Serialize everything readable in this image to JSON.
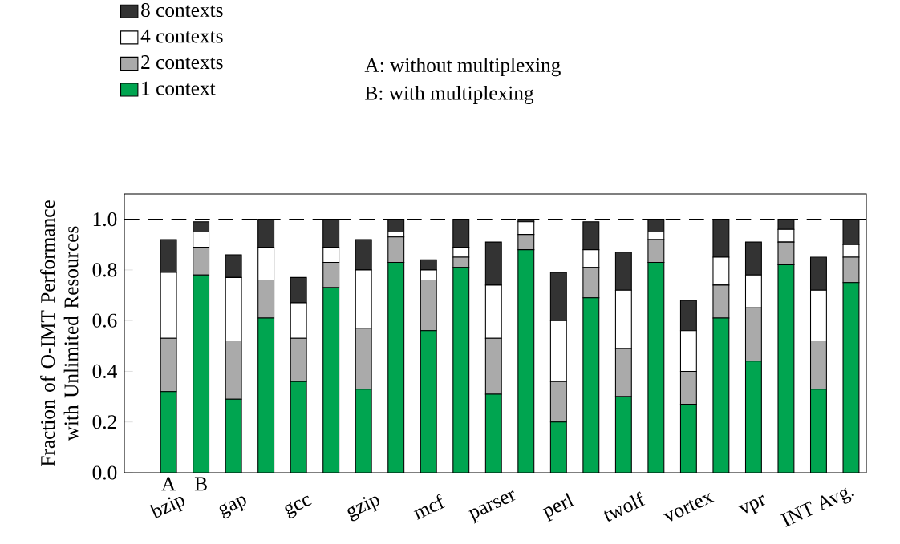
{
  "chart_data": {
    "type": "bar",
    "stacked": true,
    "ylabel": "Fraction of O-IMT Performance with Unlimited Resources",
    "categories": [
      "bzip",
      null,
      "gap",
      null,
      "gcc",
      null,
      "gzip",
      null,
      "mcf",
      null,
      "parser",
      null,
      "perl",
      null,
      "twolf",
      null,
      "vortex",
      null,
      "vpr",
      null,
      "INT Avg.",
      null
    ],
    "series": [
      {
        "name": "1 context",
        "color": "#00a550",
        "values": [
          0.32,
          0.78,
          0.29,
          0.61,
          0.36,
          0.73,
          0.33,
          0.83,
          0.56,
          0.81,
          0.31,
          0.88,
          0.2,
          0.69,
          0.3,
          0.83,
          0.27,
          0.61,
          0.44,
          0.82,
          0.33,
          0.75
        ]
      },
      {
        "name": "2 contexts",
        "color": "#aaaaaa",
        "values": [
          0.21,
          0.11,
          0.23,
          0.15,
          0.17,
          0.1,
          0.24,
          0.1,
          0.2,
          0.04,
          0.22,
          0.06,
          0.16,
          0.12,
          0.19,
          0.09,
          0.13,
          0.13,
          0.21,
          0.09,
          0.19,
          0.1
        ]
      },
      {
        "name": "4 contexts",
        "color": "#ffffff",
        "values": [
          0.26,
          0.06,
          0.25,
          0.13,
          0.14,
          0.06,
          0.23,
          0.02,
          0.04,
          0.04,
          0.21,
          0.05,
          0.24,
          0.07,
          0.23,
          0.03,
          0.16,
          0.11,
          0.13,
          0.05,
          0.2,
          0.05
        ]
      },
      {
        "name": "8 contexts",
        "color": "#333333",
        "values": [
          0.13,
          0.04,
          0.09,
          0.11,
          0.1,
          0.11,
          0.12,
          0.05,
          0.04,
          0.11,
          0.17,
          0.01,
          0.19,
          0.11,
          0.15,
          0.05,
          0.12,
          0.15,
          0.13,
          0.04,
          0.13,
          0.1
        ]
      }
    ],
    "ylim": [
      0,
      1.1
    ],
    "yticks": [
      {
        "value": 0,
        "label": "0.0"
      },
      {
        "value": 0.2,
        "label": "0.2"
      },
      {
        "value": 0.4,
        "label": "0.4"
      },
      {
        "value": 0.6,
        "label": "0.6"
      },
      {
        "value": 0.8,
        "label": "0.8"
      },
      {
        "value": 1,
        "label": "1.0"
      }
    ],
    "ref_lines": [
      {
        "axis": "y",
        "value": 1.0,
        "line_style": "dashed",
        "color": "#000000"
      }
    ],
    "legend": "top left",
    "annotations": [
      "A",
      "B",
      "A: without multiplexing",
      "B: with multiplexing"
    ]
  }
}
